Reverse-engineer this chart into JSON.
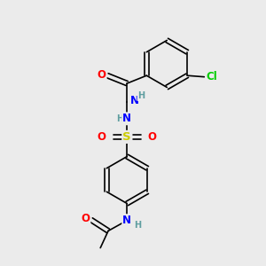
{
  "bg_color": "#ebebeb",
  "atom_colors": {
    "C": "#000000",
    "H": "#5f9ea0",
    "N": "#0000ff",
    "O": "#ff0000",
    "S": "#cccc00",
    "Cl": "#00cc00"
  },
  "bond_color": "#000000",
  "bond_width": 1.2,
  "font_size_atom": 8.5,
  "font_size_H": 7.0,
  "fig_bg": "#ebebeb"
}
